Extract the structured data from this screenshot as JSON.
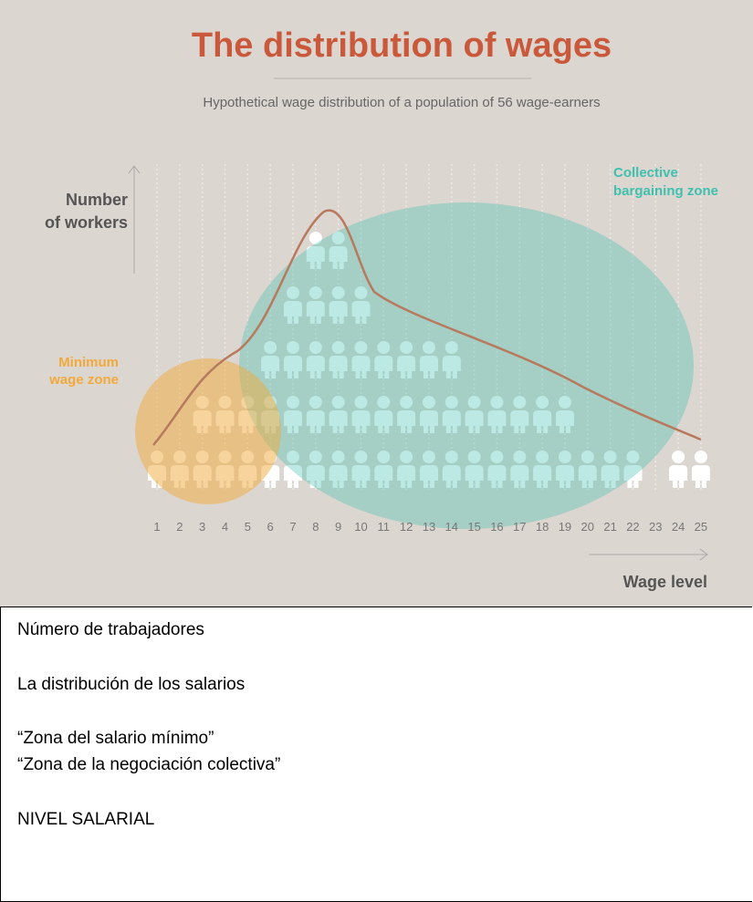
{
  "chart_data": {
    "type": "pictogram",
    "title": "The distribution of wages",
    "subtitle": "Hypothetical wage distribution of a population of 56 wage-earners",
    "y_label": [
      "Number",
      "of workers"
    ],
    "x_label": "Wage level",
    "zones": [
      {
        "name": [
          "Minimum",
          "wage zone"
        ],
        "color": "#f2a93b"
      },
      {
        "name": [
          "Collective",
          "bargaining zone"
        ],
        "color": "#3fbfae"
      }
    ],
    "categories": [
      "1",
      "2",
      "3",
      "4",
      "5",
      "6",
      "7",
      "8",
      "9",
      "10",
      "11",
      "12",
      "13",
      "14",
      "15",
      "16",
      "17",
      "18",
      "19",
      "20",
      "21",
      "22",
      "23",
      "24",
      "25"
    ],
    "values": [
      1,
      1,
      2,
      2,
      2,
      3,
      4,
      5,
      5,
      4,
      3,
      3,
      3,
      3,
      2,
      2,
      2,
      2,
      2,
      1,
      1,
      1,
      0,
      1,
      1
    ],
    "color": "#ffffff"
  },
  "translations": [
    "Número de trabajadores",
    "La distribución de los salarios",
    "“Zona del salario mínimo”",
    "“Zona de la negociación colectiva”",
    "NIVEL SALARIAL"
  ]
}
